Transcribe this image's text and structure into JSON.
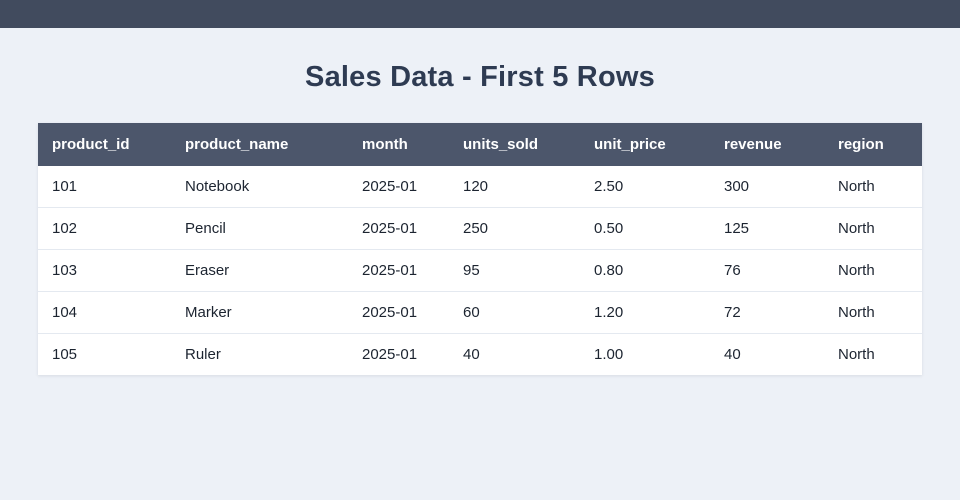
{
  "page": {
    "title": "Sales Data - First 5 Rows"
  },
  "colors": {
    "background": "#edf1f7",
    "top_bar": "#414b5e",
    "table_header_bg": "#4c566b",
    "table_header_text": "#ffffff",
    "row_bg": "#ffffff",
    "row_divider": "#e4e9f0",
    "title_text": "#2e3b52",
    "cell_text": "#1c2430"
  },
  "table": {
    "columns": [
      "product_id",
      "product_name",
      "month",
      "units_sold",
      "unit_price",
      "revenue",
      "region"
    ],
    "rows": [
      [
        "101",
        "Notebook",
        "2025-01",
        "120",
        "2.50",
        "300",
        "North"
      ],
      [
        "102",
        "Pencil",
        "2025-01",
        "250",
        "0.50",
        "125",
        "North"
      ],
      [
        "103",
        "Eraser",
        "2025-01",
        "95",
        "0.80",
        "76",
        "North"
      ],
      [
        "104",
        "Marker",
        "2025-01",
        "60",
        "1.20",
        "72",
        "North"
      ],
      [
        "105",
        "Ruler",
        "2025-01",
        "40",
        "1.00",
        "40",
        "North"
      ]
    ]
  },
  "chart_data": {
    "type": "table",
    "title": "Sales Data - First 5 Rows",
    "columns": [
      "product_id",
      "product_name",
      "month",
      "units_sold",
      "unit_price",
      "revenue",
      "region"
    ],
    "rows": [
      [
        "101",
        "Notebook",
        "2025-01",
        120,
        2.5,
        300,
        "North"
      ],
      [
        "102",
        "Pencil",
        "2025-01",
        250,
        0.5,
        125,
        "North"
      ],
      [
        "103",
        "Eraser",
        "2025-01",
        95,
        0.8,
        76,
        "North"
      ],
      [
        "104",
        "Marker",
        "2025-01",
        60,
        1.2,
        72,
        "North"
      ],
      [
        "105",
        "Ruler",
        "2025-01",
        40,
        1.0,
        40,
        "North"
      ]
    ]
  }
}
